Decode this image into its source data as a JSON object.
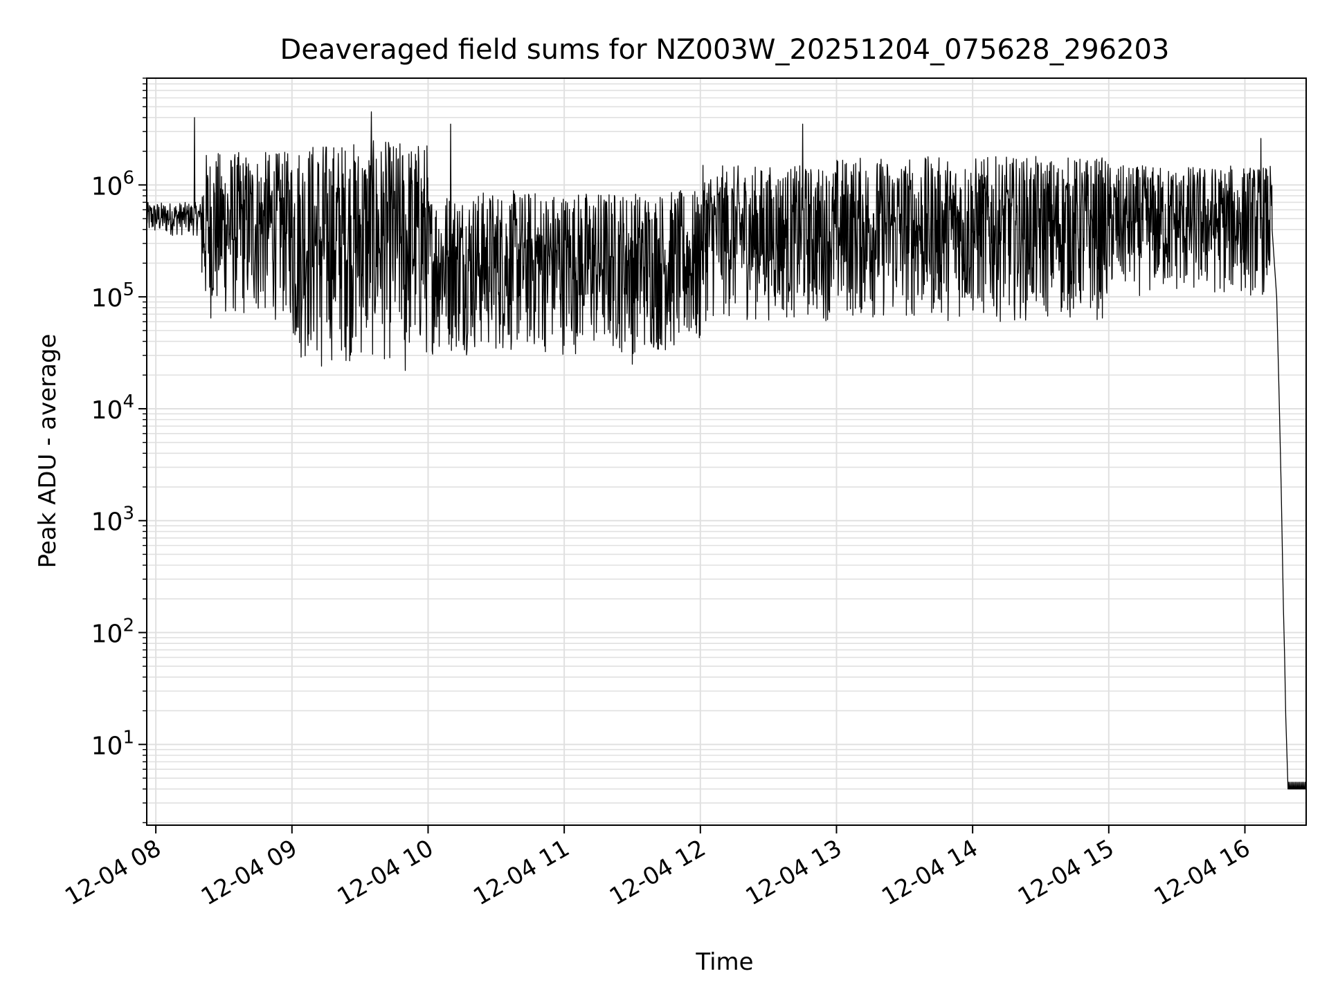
{
  "chart_data": {
    "type": "line",
    "title": "Deaveraged field sums for NZ003W_20251204_075628_296203",
    "xlabel": "Time",
    "ylabel": "Peak ADU - average",
    "yscale": "log",
    "xlim": [
      "2025-12-04 07:56",
      "2025-12-04 16:27"
    ],
    "ylim": [
      1.9,
      9000000
    ],
    "x_ticks": [
      "12-04 08",
      "12-04 09",
      "12-04 10",
      "12-04 11",
      "12-04 12",
      "12-04 13",
      "12-04 14",
      "12-04 15",
      "12-04 16"
    ],
    "y_ticks": [
      {
        "base": "10",
        "exp": "1",
        "value": 10
      },
      {
        "base": "10",
        "exp": "2",
        "value": 100
      },
      {
        "base": "10",
        "exp": "3",
        "value": 1000
      },
      {
        "base": "10",
        "exp": "4",
        "value": 10000
      },
      {
        "base": "10",
        "exp": "5",
        "value": 100000
      },
      {
        "base": "10",
        "exp": "6",
        "value": 1000000
      }
    ],
    "grid": true,
    "line_color": "#000000",
    "grid_color": "#e0e0e0",
    "series": [
      {
        "envelope_hourly": [
          {
            "start": "2025-12-04 07:56",
            "end": "2025-12-04 08:20",
            "low": 350000,
            "high": 700000
          },
          {
            "start": "2025-12-04 08:20",
            "end": "2025-12-04 09:00",
            "low": 60000,
            "high": 2000000
          },
          {
            "start": "2025-12-04 09:00",
            "end": "2025-12-04 10:00",
            "low": 25000,
            "high": 2500000
          },
          {
            "start": "2025-12-04 10:00",
            "end": "2025-12-04 12:00",
            "low": 30000,
            "high": 900000
          },
          {
            "start": "2025-12-04 12:00",
            "end": "2025-12-04 13:00",
            "low": 60000,
            "high": 1500000
          },
          {
            "start": "2025-12-04 13:00",
            "end": "2025-12-04 15:00",
            "low": 60000,
            "high": 1800000
          },
          {
            "start": "2025-12-04 15:00",
            "end": "2025-12-04 16:12",
            "low": 100000,
            "high": 1500000
          }
        ],
        "spikes": [
          {
            "x": "2025-12-04 08:17",
            "y": 4000000
          },
          {
            "x": "2025-12-04 09:35",
            "y": 4500000
          },
          {
            "x": "2025-12-04 10:10",
            "y": 3500000
          },
          {
            "x": "2025-12-04 12:45",
            "y": 3500000
          },
          {
            "x": "2025-12-04 16:07",
            "y": 2600000
          }
        ],
        "dips": [
          {
            "x": "2025-12-04 09:50",
            "y": 22000
          },
          {
            "x": "2025-12-04 09:13",
            "y": 24000
          },
          {
            "x": "2025-12-04 11:30",
            "y": 25000
          }
        ],
        "decay": [
          {
            "x": "2025-12-04 16:12",
            "y": 400000
          },
          {
            "x": "2025-12-04 16:14",
            "y": 100000
          },
          {
            "x": "2025-12-04 16:15",
            "y": 15000
          },
          {
            "x": "2025-12-04 16:16",
            "y": 2000
          },
          {
            "x": "2025-12-04 16:17",
            "y": 160
          },
          {
            "x": "2025-12-04 16:17:30",
            "y": 60
          },
          {
            "x": "2025-12-04 16:18",
            "y": 18
          },
          {
            "x": "2025-12-04 16:19",
            "y": 4
          },
          {
            "x": "2025-12-04 16:27",
            "y": 4
          }
        ]
      }
    ]
  }
}
